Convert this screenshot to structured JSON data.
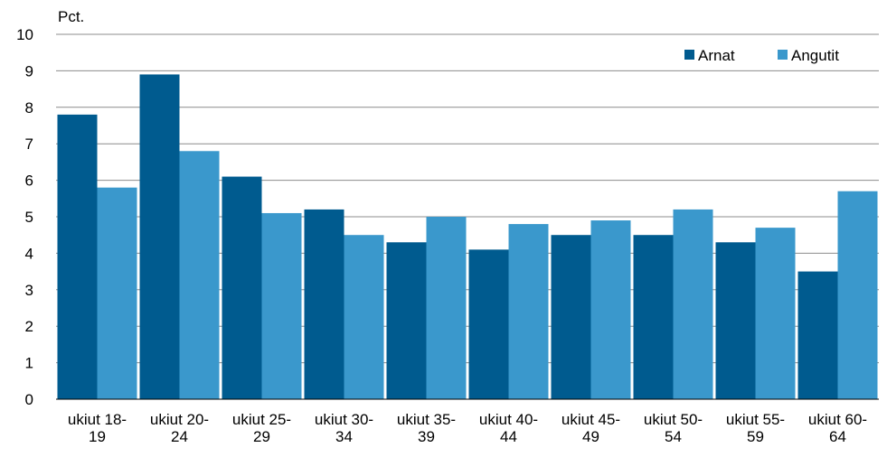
{
  "chart_data": {
    "type": "bar",
    "unit_label": "Pct.",
    "categories": [
      [
        "ukiut 18-",
        "19"
      ],
      [
        "ukiut 20-",
        "24"
      ],
      [
        "ukiut 25-",
        "29"
      ],
      [
        "ukiut 30-",
        "34"
      ],
      [
        "ukiut 35-",
        "39"
      ],
      [
        "ukiut 40-",
        "44"
      ],
      [
        "ukiut 45-",
        "49"
      ],
      [
        "ukiut 50-",
        "54"
      ],
      [
        "ukiut 55-",
        "59"
      ],
      [
        "ukiut 60-",
        "64"
      ]
    ],
    "series": [
      {
        "name": "Arnat",
        "color": "#005b8f",
        "values": [
          7.8,
          8.9,
          6.1,
          5.2,
          4.3,
          4.1,
          4.5,
          4.5,
          4.3,
          3.5
        ]
      },
      {
        "name": "Angutit",
        "color": "#3a98cc",
        "values": [
          5.8,
          6.8,
          5.1,
          4.5,
          5.0,
          4.8,
          4.9,
          5.2,
          4.7,
          5.7
        ]
      }
    ],
    "ylim": [
      0,
      10
    ],
    "yticks": [
      0,
      1,
      2,
      3,
      4,
      5,
      6,
      7,
      8,
      9,
      10
    ],
    "grid": true,
    "legend_position": "top-right"
  }
}
